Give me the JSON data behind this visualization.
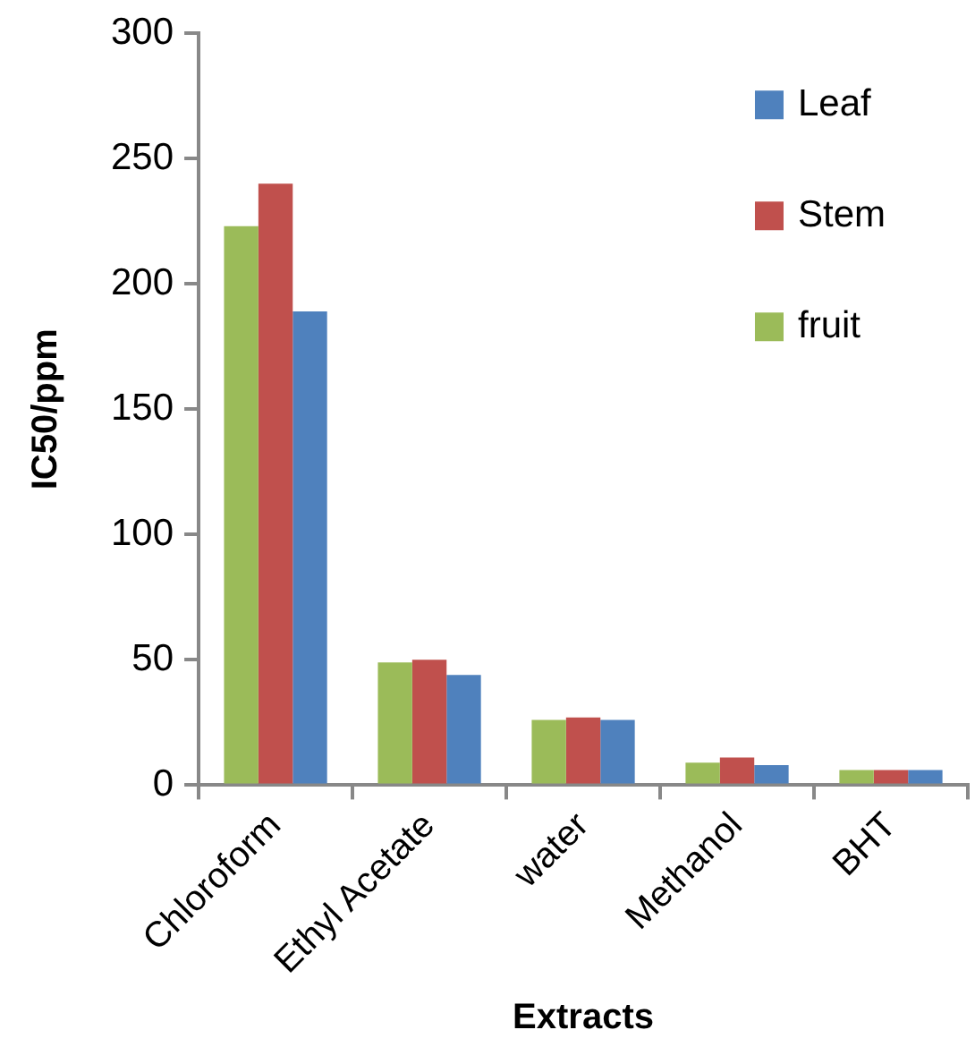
{
  "chart_data": {
    "type": "bar",
    "xlabel": "Extracts",
    "ylabel": "IC50/ppm",
    "categories": [
      "Chloroform",
      "Ethyl Acetate",
      "water",
      "Methanol",
      "BHT"
    ],
    "series": [
      {
        "name": "fruit",
        "color": "#9bbb59",
        "values": [
          223,
          49,
          26,
          9,
          6
        ]
      },
      {
        "name": "Stem",
        "color": "#c0504d",
        "values": [
          240,
          50,
          27,
          11,
          6
        ]
      },
      {
        "name": "Leaf",
        "color": "#4f81bd",
        "values": [
          189,
          44,
          26,
          8,
          6
        ]
      }
    ],
    "ylim": [
      0,
      300
    ],
    "yticks": [
      0,
      50,
      100,
      150,
      200,
      250,
      300
    ],
    "grid": false,
    "legend": "top right"
  }
}
